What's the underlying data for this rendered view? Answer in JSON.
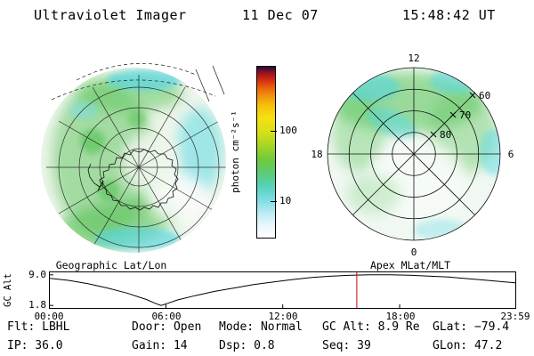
{
  "header": {
    "title": "Ultraviolet Imager",
    "date": "11 Dec 07",
    "time": "15:48:42 UT"
  },
  "status": {
    "row1": [
      "Flt: LBHL",
      "Door: Open",
      "Mode: Normal",
      "GC Alt: 8.9 Re",
      "GLat: −79.4"
    ],
    "row2": [
      "IP: 36.0",
      "Gain: 14",
      "Dsp: 0.8",
      "Seq: 39",
      "GLon: 47.2"
    ]
  },
  "chart_data": [
    {
      "id": "geo_image",
      "type": "heatmap",
      "title": "Geographic Lat/Lon",
      "content": "Southern polar UV auroral image: diffuse green/cyan emission over Antarctica coastline with geographic lat/lon grid overlay"
    },
    {
      "id": "colorbar",
      "type": "heatmap",
      "label": "photon cm⁻²s⁻¹",
      "tick_labels": [
        "100",
        "10"
      ],
      "tick_pos_pct_from_top": [
        38,
        79
      ],
      "stops": [
        {
          "pos": 0,
          "color": "#ffffff"
        },
        {
          "pos": 7,
          "color": "#eaf7fc"
        },
        {
          "pos": 14,
          "color": "#bfecf6"
        },
        {
          "pos": 22,
          "color": "#7edce4"
        },
        {
          "pos": 30,
          "color": "#57d2bb"
        },
        {
          "pos": 38,
          "color": "#5ccb72"
        },
        {
          "pos": 46,
          "color": "#71ca3a"
        },
        {
          "pos": 54,
          "color": "#a6d626"
        },
        {
          "pos": 62,
          "color": "#d9e018"
        },
        {
          "pos": 70,
          "color": "#f5e112"
        },
        {
          "pos": 77,
          "color": "#f6c20d"
        },
        {
          "pos": 83,
          "color": "#f1920f"
        },
        {
          "pos": 88,
          "color": "#e6600b"
        },
        {
          "pos": 92,
          "color": "#d52f10"
        },
        {
          "pos": 96,
          "color": "#a2121c"
        },
        {
          "pos": 98,
          "color": "#641031"
        },
        {
          "pos": 100,
          "color": "#230b38"
        }
      ]
    },
    {
      "id": "apex_plot",
      "type": "heatmap",
      "title": "Apex MLat/MLT",
      "mlt_labels": {
        "top": "12",
        "left": "18",
        "right": "6",
        "bottom": "0"
      },
      "mlat_ring_labels": [
        "60",
        "70",
        "80"
      ],
      "content": "Auroral emission mapped onto Apex magnetic latitude / MLT polar grid; green band across dayside sector"
    },
    {
      "id": "gc_alt",
      "type": "line",
      "ylabel": "GC Alt",
      "ytick_labels": [
        "9.0",
        "1.8"
      ],
      "yticks": [
        9.0,
        1.8
      ],
      "ylim": [
        1.0,
        9.8
      ],
      "xlim_hours": [
        0,
        23.983
      ],
      "xtick_labels": [
        "00:00",
        "06:00",
        "12:00",
        "18:00",
        "23:59"
      ],
      "xtick_hours": [
        0,
        6,
        12,
        18,
        23.983
      ],
      "points": [
        [
          0,
          8.2
        ],
        [
          1,
          7.7
        ],
        [
          2,
          6.9
        ],
        [
          3,
          5.9
        ],
        [
          4,
          4.7
        ],
        [
          5,
          3.2
        ],
        [
          5.4,
          2.4
        ],
        [
          5.75,
          1.8
        ],
        [
          6.1,
          2.3
        ],
        [
          6.6,
          3.1
        ],
        [
          7.5,
          4.1
        ],
        [
          8.5,
          5.1
        ],
        [
          9.5,
          5.9
        ],
        [
          10.5,
          6.7
        ],
        [
          11.5,
          7.3
        ],
        [
          12.5,
          7.9
        ],
        [
          13.5,
          8.4
        ],
        [
          14.5,
          8.7
        ],
        [
          15.5,
          8.9
        ],
        [
          16.5,
          9.0
        ],
        [
          17.5,
          9.0
        ],
        [
          18.5,
          8.9
        ],
        [
          19.5,
          8.7
        ],
        [
          20.5,
          8.5
        ],
        [
          21.5,
          8.1
        ],
        [
          22.5,
          7.7
        ],
        [
          23.983,
          7.1
        ]
      ],
      "marker_hour": 15.8,
      "marker_color": "#cc0000"
    }
  ]
}
